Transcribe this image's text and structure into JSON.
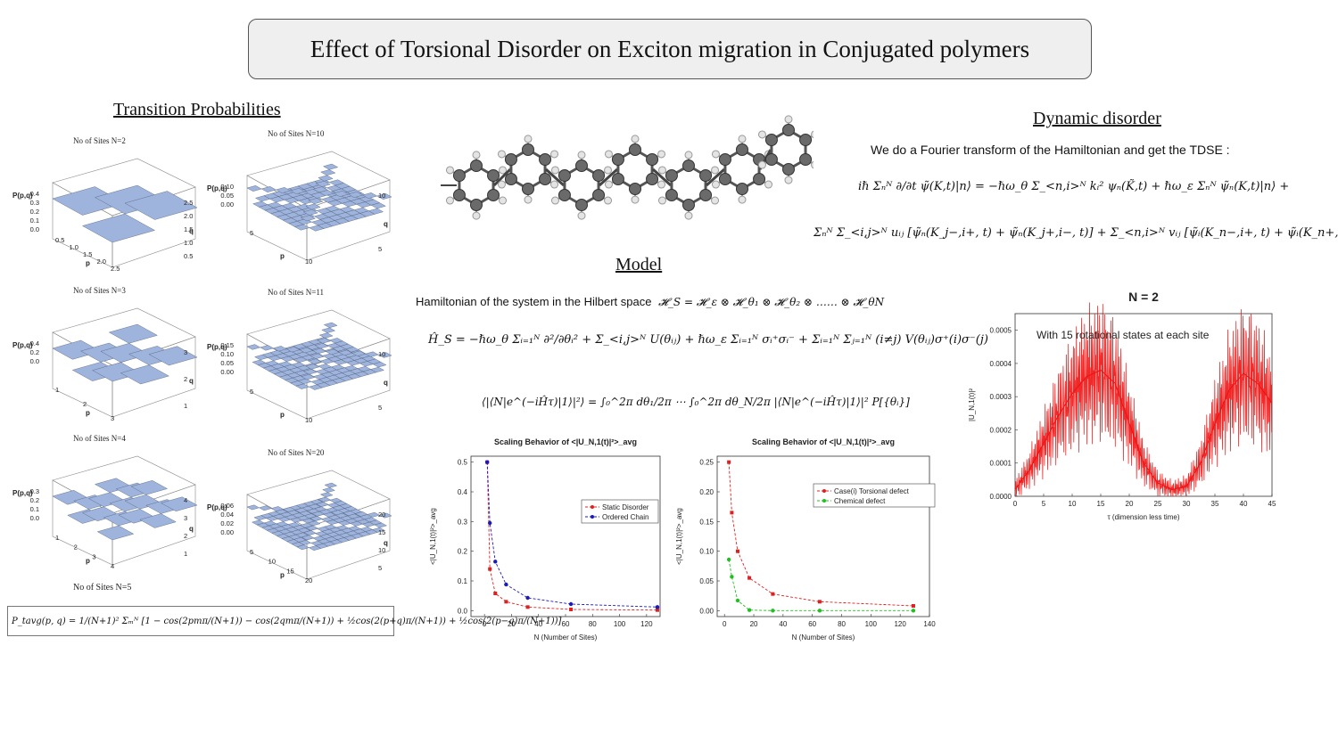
{
  "title": "Effect of Torsional Disorder on Exciton migration in Conjugated polymers",
  "sections": {
    "transition": "Transition Probabilities",
    "model": "Model",
    "dynamic": "Dynamic disorder"
  },
  "prob_plots": [
    {
      "label": "No of Sites N=2",
      "zlabel": "P(p,q)",
      "xlabel": "p",
      "ylabel": "q",
      "zticks": [
        "0.4",
        "0.3",
        "0.2",
        "0.1",
        "0.0"
      ],
      "xticks": [
        "0.5",
        "1.0",
        "1.5",
        "2.0",
        "2.5"
      ],
      "yticks": [
        "2.5",
        "2.0",
        "1.5",
        "1.0",
        "0.5"
      ]
    },
    {
      "label": "No of Sites N=10",
      "zlabel": "P(p,q)",
      "xlabel": "p",
      "ylabel": "q",
      "zticks": [
        "0.10",
        "0.05",
        "0.00"
      ],
      "xticks": [
        "5",
        "10"
      ],
      "yticks": [
        "10",
        "5"
      ]
    },
    {
      "label": "No of Sites N=3",
      "zlabel": "P(p,q)",
      "xlabel": "p",
      "ylabel": "q",
      "zticks": [
        "0.4",
        "0.2",
        "0.0"
      ],
      "xticks": [
        "1",
        "2",
        "3"
      ],
      "yticks": [
        "3",
        "2",
        "1"
      ]
    },
    {
      "label": "No of Sites N=11",
      "zlabel": "P(p,q)",
      "xlabel": "p",
      "ylabel": "q",
      "zticks": [
        "0.15",
        "0.10",
        "0.05",
        "0.00"
      ],
      "xticks": [
        "5",
        "10"
      ],
      "yticks": [
        "10",
        "5"
      ]
    },
    {
      "label": "No of Sites N=4",
      "zlabel": "P(p,q)",
      "xlabel": "p",
      "ylabel": "q",
      "zticks": [
        "0.3",
        "0.2",
        "0.1",
        "0.0"
      ],
      "xticks": [
        "1",
        "2",
        "3",
        "4"
      ],
      "yticks": [
        "4",
        "3",
        "2",
        "1"
      ]
    },
    {
      "label": "No of Sites N=20",
      "zlabel": "P(p,q)",
      "xlabel": "p",
      "ylabel": "q",
      "zticks": [
        "0.06",
        "0.04",
        "0.02",
        "0.00"
      ],
      "xticks": [
        "5",
        "10",
        "15",
        "20"
      ],
      "yticks": [
        "20",
        "15",
        "10",
        "5"
      ]
    }
  ],
  "n5_label": "No of Sites N=5",
  "formula_prob": "P_tavg(p, q) = 1/(N+1)² Σₘᴺ [1 − cos(2pmπ/(N+1)) − cos(2qmπ/(N+1)) + ½cos(2(p+q)π/(N+1)) + ½cos(2(p−q)π/(N+1))]",
  "model": {
    "hamiltonian_intro": "Hamiltonian of the system in the Hilbert space",
    "hilbert": "𝓗_S = 𝓗_ε ⊗ 𝓗_θ₁ ⊗ 𝓗_θ₂ ⊗ …… ⊗ 𝓗_θN",
    "hamiltonian": "Ĥ_S = −ℏω_θ Σᵢ₌₁ᴺ ∂²/∂θᵢ² + Σ_<i,j>ᴺ U(θᵢⱼ) + ℏω_ε Σᵢ₌₁ᴺ σᵢ⁺σᵢ⁻ + Σᵢ₌₁ᴺ Σⱼ₌₁ᴺ (i≠j) V(θᵢⱼ)σ⁺(i)σ⁻(j)",
    "average": "⟨|⟨N|e^(−iĤτ)|1⟩|²⟩ = ∫₀^2π dθ₁/2π ⋯ ∫₀^2π dθ_N/2π |⟨N|e^(−iĤτ)|1⟩|² P[{θᵢ}]"
  },
  "dynamic": {
    "intro": "We do a Fourier transform of the Hamiltonian and get the TDSE :",
    "tdse1": "iℏ Σₙᴺ ∂/∂t ψ̃(K,t)|n⟩ = −ℏω_θ Σ_<n,i>ᴺ kᵢ² ψₙ(K̃,t) + ℏω_ε Σₙᴺ ψ̃ₙ(K,t)|n⟩ +",
    "tdse2": "Σₙᴺ Σ_<i,j>ᴺ uᵢⱼ [ψ̃ₙ(K_j−,i+, t) + ψ̃ₙ(K_j+,i−, t)] + Σ_<n,i>ᴺ vᵢⱼ [ψ̃ᵢ(K_n−,i+, t) + ψ̃ᵢ(K_n+,i−, t)]"
  },
  "chart_data": [
    {
      "type": "line",
      "title": "Scaling Behavior of <|U_N,1(t)|²>_avg",
      "xlabel": "N (Number of Sites)",
      "ylabel": "<|U_N,1(t)|²>_avg",
      "xlim": [
        -10,
        130
      ],
      "ylim": [
        -0.02,
        0.52
      ],
      "xticks": [
        0,
        20,
        40,
        60,
        80,
        100,
        120
      ],
      "yticks": [
        0.0,
        0.1,
        0.2,
        0.3,
        0.4,
        0.5
      ],
      "legend": "center-right",
      "series": [
        {
          "name": "Static Disorder",
          "color": "#e02020",
          "x": [
            2,
            4,
            8,
            16,
            32,
            64,
            128
          ],
          "y": [
            0.5,
            0.14,
            0.058,
            0.03,
            0.012,
            0.004,
            0.002
          ]
        },
        {
          "name": "Ordered Chain",
          "color": "#1a1ab8",
          "x": [
            2,
            4,
            8,
            16,
            32,
            64,
            128
          ],
          "y": [
            0.5,
            0.295,
            0.165,
            0.088,
            0.043,
            0.022,
            0.012
          ]
        }
      ]
    },
    {
      "type": "line",
      "title": "Scaling Behavior of <|U_N,1(t)|²>_avg",
      "xlabel": "N (Number of Sites)",
      "ylabel": "<|U_N,1(t)|²>_avg",
      "xlim": [
        -5,
        140
      ],
      "ylim": [
        -0.01,
        0.26
      ],
      "xticks": [
        0,
        20,
        40,
        60,
        80,
        100,
        120,
        140
      ],
      "yticks": [
        0.0,
        0.05,
        0.1,
        0.15,
        0.2,
        0.25
      ],
      "legend": "top-right",
      "series": [
        {
          "name": "Case(i) Torsional defect",
          "color": "#e02020",
          "x": [
            3,
            5,
            9,
            17,
            33,
            65,
            129
          ],
          "y": [
            0.25,
            0.165,
            0.1,
            0.055,
            0.028,
            0.015,
            0.008
          ]
        },
        {
          "name": "Chemical defect",
          "color": "#20c020",
          "x": [
            3,
            5,
            9,
            17,
            33,
            65,
            129
          ],
          "y": [
            0.086,
            0.057,
            0.017,
            0.001,
            0.0,
            0.0,
            0.0
          ]
        }
      ]
    },
    {
      "type": "line",
      "title": "N = 2",
      "annotation": "With 15 rotational states at each site",
      "xlabel": "τ (dimension less time)",
      "ylabel": "|U_N,1(t)|²",
      "xlim": [
        0,
        45
      ],
      "ylim": [
        0,
        0.00055
      ],
      "xticks": [
        0,
        5,
        10,
        15,
        20,
        25,
        30,
        35,
        40,
        45
      ],
      "yticks": [
        "0.0000",
        "0.0001",
        "0.0002",
        "0.0003",
        "0.0004",
        "0.0005"
      ],
      "series": [
        {
          "name": "",
          "color": "#ee1111",
          "x": [
            0,
            2.5,
            5,
            7.5,
            10,
            12.5,
            15,
            17.5,
            20,
            22.5,
            25,
            27.5,
            30,
            32.5,
            35,
            37.5,
            40,
            42.5,
            45
          ],
          "y": [
            2e-05,
            8e-05,
            0.00016,
            0.00024,
            0.00031,
            0.00036,
            0.00038,
            0.00034,
            0.00022,
            0.0001,
            4e-05,
            2e-05,
            3e-05,
            0.0001,
            0.00022,
            0.00032,
            0.00037,
            0.00034,
            0.00028
          ]
        }
      ]
    }
  ]
}
